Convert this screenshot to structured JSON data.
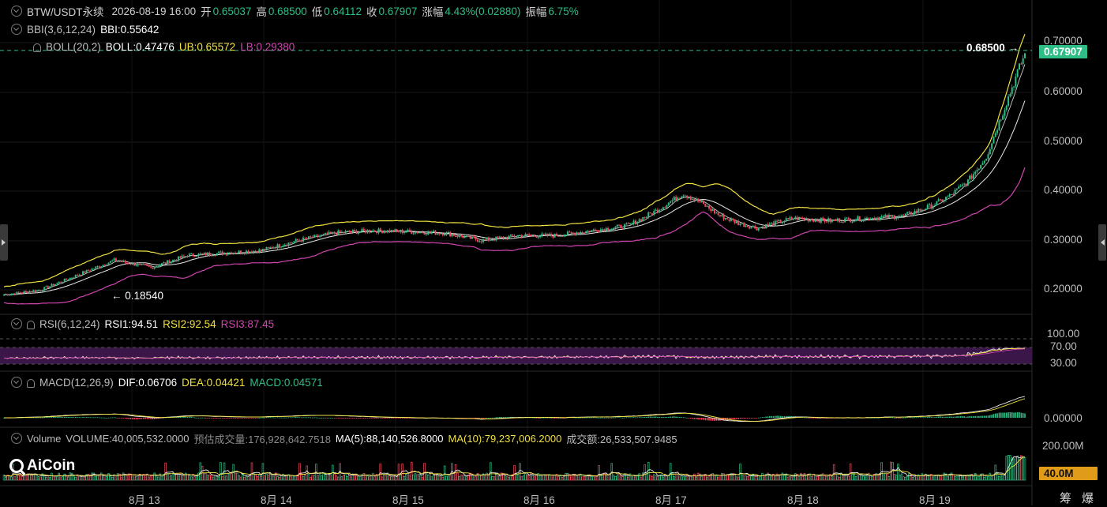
{
  "colors": {
    "up": "#2ebd85",
    "down": "#f6465d",
    "yellow": "#f0e040",
    "white": "#e8e8e8",
    "pink": "#d045b0",
    "grey": "#bdbdbd",
    "purple": "#3a1748"
  },
  "header": {
    "symbol": "BTW/USDT永续",
    "datetime": "2026-08-19 16:00",
    "open_label": "开",
    "open": "0.65037",
    "high_label": "高",
    "high": "0.68500",
    "low_label": "低",
    "low": "0.64112",
    "close_label": "收",
    "close": "0.67907",
    "change_label": "涨幅",
    "change": "4.43%(0.02880)",
    "amplitude_label": "振幅",
    "amplitude": "6.75%"
  },
  "bbi": {
    "name": "BBI(3,6,12,24)",
    "value": "BBI:0.55642"
  },
  "boll": {
    "name": "BOLL(20,2)",
    "mid": "BOLL:0.47476",
    "ub": "UB:0.65572",
    "lb": "LB:0.29380"
  },
  "rsi": {
    "name": "RSI(6,12,24)",
    "r1": "RSI1:94.51",
    "r2": "RSI2:92.54",
    "r3": "RSI3:87.45"
  },
  "macd": {
    "name": "MACD(12,26,9)",
    "dif": "DIF:0.06706",
    "dea": "DEA:0.04421",
    "macd": "MACD:0.04571"
  },
  "volume": {
    "name": "Volume",
    "vol": "VOLUME:40,005,532.0000",
    "est": "预估成交量:176,928,642.7518",
    "ma5": "MA(5):88,140,526.8000",
    "ma10": "MA(10):79,237,006.2000",
    "turnover": "成交额:26,533,507.9485"
  },
  "price_axis": [
    "0.70000",
    "0.60000",
    "0.50000",
    "0.40000",
    "0.30000",
    "0.20000"
  ],
  "rsi_axis": [
    "100.00",
    "70.00",
    "30.00"
  ],
  "macd_axis": [
    "0.00000"
  ],
  "vol_axis": [
    "200.00M"
  ],
  "high_marker": "0.68500",
  "low_marker": "0.18540",
  "last_price_tag": "0.67907",
  "vol_tag": "40.0M",
  "x_labels": [
    "8月 13",
    "8月 14",
    "8月 15",
    "8月 16",
    "8月 17",
    "8月 18",
    "8月 19"
  ],
  "logo": "AiCoin",
  "corner_labels": [
    "筹",
    "爆"
  ],
  "chart_data": {
    "type": "candlestick",
    "interval_hours": 1,
    "x_start": "2026-08-12",
    "price_range": [
      0.16,
      0.71
    ],
    "anchors": [
      [
        0,
        0.19
      ],
      [
        20,
        0.2
      ],
      [
        40,
        0.23
      ],
      [
        60,
        0.26
      ],
      [
        80,
        0.245
      ],
      [
        100,
        0.27
      ],
      [
        120,
        0.275
      ],
      [
        140,
        0.28
      ],
      [
        160,
        0.3
      ],
      [
        180,
        0.315
      ],
      [
        200,
        0.32
      ],
      [
        220,
        0.318
      ],
      [
        240,
        0.315
      ],
      [
        260,
        0.3
      ],
      [
        280,
        0.31
      ],
      [
        300,
        0.31
      ],
      [
        320,
        0.32
      ],
      [
        340,
        0.33
      ],
      [
        355,
        0.36
      ],
      [
        370,
        0.395
      ],
      [
        380,
        0.375
      ],
      [
        390,
        0.35
      ],
      [
        400,
        0.335
      ],
      [
        410,
        0.325
      ],
      [
        430,
        0.345
      ],
      [
        450,
        0.34
      ],
      [
        470,
        0.345
      ],
      [
        490,
        0.35
      ],
      [
        505,
        0.37
      ],
      [
        515,
        0.39
      ],
      [
        525,
        0.42
      ],
      [
        535,
        0.47
      ],
      [
        543,
        0.55
      ],
      [
        550,
        0.62
      ],
      [
        556,
        0.679
      ]
    ]
  }
}
